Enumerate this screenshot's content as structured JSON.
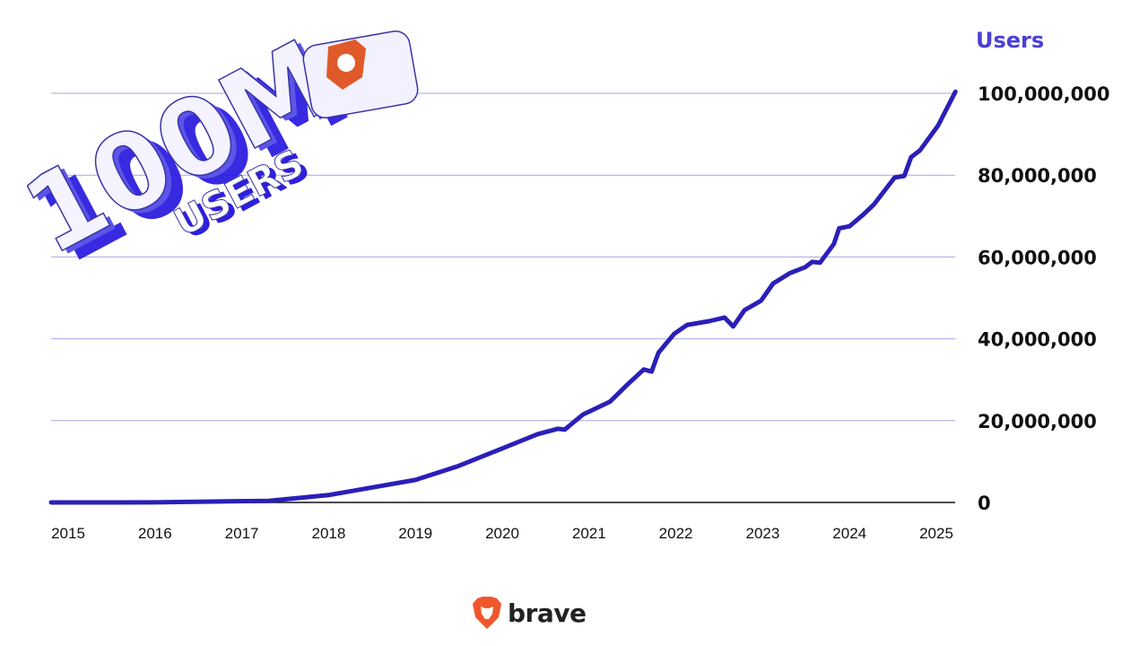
{
  "chart_data": {
    "type": "line",
    "title": "",
    "ylabel": "Users",
    "xlabel": "",
    "x_ticks": [
      "2015",
      "2016",
      "2017",
      "2018",
      "2019",
      "2020",
      "2021",
      "2022",
      "2023",
      "2024",
      "2025"
    ],
    "y_ticks": [
      "0",
      "20,000,000",
      "40,000,000",
      "60,000,000",
      "80,000,000",
      "100,000,000"
    ],
    "y_tick_values": [
      0,
      20000000,
      40000000,
      60000000,
      80000000,
      100000000
    ],
    "xlim": [
      2014.8,
      2025.22
    ],
    "ylim": [
      0,
      100000000
    ],
    "grid": "horizontal",
    "y_axis_position": "right",
    "series": [
      {
        "color": "#2a1fb8",
        "x": [
          2014.8,
          2016.0,
          2017.31,
          2018.0,
          2019.0,
          2019.48,
          2020.0,
          2020.41,
          2020.64,
          2020.72,
          2020.93,
          2021.24,
          2021.45,
          2021.63,
          2021.72,
          2021.8,
          2021.98,
          2022.13,
          2022.38,
          2022.56,
          2022.66,
          2022.79,
          2022.98,
          2023.12,
          2023.31,
          2023.49,
          2023.57,
          2023.66,
          2023.82,
          2023.88,
          2024.0,
          2024.15,
          2024.28,
          2024.52,
          2024.63,
          2024.71,
          2024.81,
          2025.02,
          2025.22
        ],
        "y": [
          0,
          20000,
          400000,
          1800000,
          5500000,
          8800000,
          13200000,
          16700000,
          18000000,
          17800000,
          21500000,
          24600000,
          29000000,
          32500000,
          32000000,
          36600000,
          41200000,
          43400000,
          44300000,
          45200000,
          43000000,
          47000000,
          49300000,
          53500000,
          56000000,
          57500000,
          58800000,
          58600000,
          63200000,
          67000000,
          67500000,
          70200000,
          72800000,
          79400000,
          79800000,
          84400000,
          86000000,
          92100000,
          100400000
        ]
      }
    ]
  },
  "badge": {
    "text": "100M",
    "subtext": "USERS",
    "accent": "#2d1fe0",
    "logo_color": "#e0592a"
  },
  "footer": {
    "brand": "brave",
    "logo_color": "#f1562b"
  },
  "colors": {
    "line": "#2a1fb8",
    "grid": "#a9a6e6",
    "axis_title": "#4b3fd6"
  }
}
